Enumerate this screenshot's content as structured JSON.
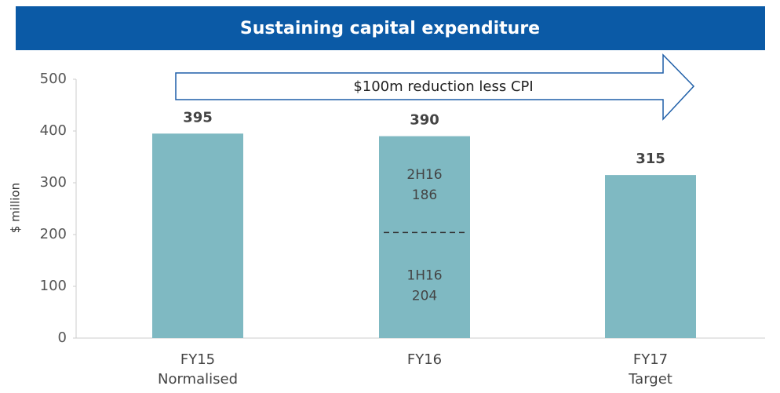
{
  "chart_data": {
    "type": "bar",
    "title": "Sustaining capital expenditure",
    "y_label": "$ million",
    "annotation": "$100m reduction less CPI",
    "categories": [
      "FY15 Normalised",
      "FY16",
      "FY17 Target"
    ],
    "values": [
      395,
      390,
      315
    ],
    "color": "#7fb9c2",
    "segments": [
      {
        "label": "1H16",
        "value": 204
      },
      {
        "label": "2H16",
        "value": 186
      }
    ],
    "ylim": [
      0,
      500
    ],
    "yticks": [
      0,
      100,
      200,
      300,
      400,
      500
    ]
  }
}
